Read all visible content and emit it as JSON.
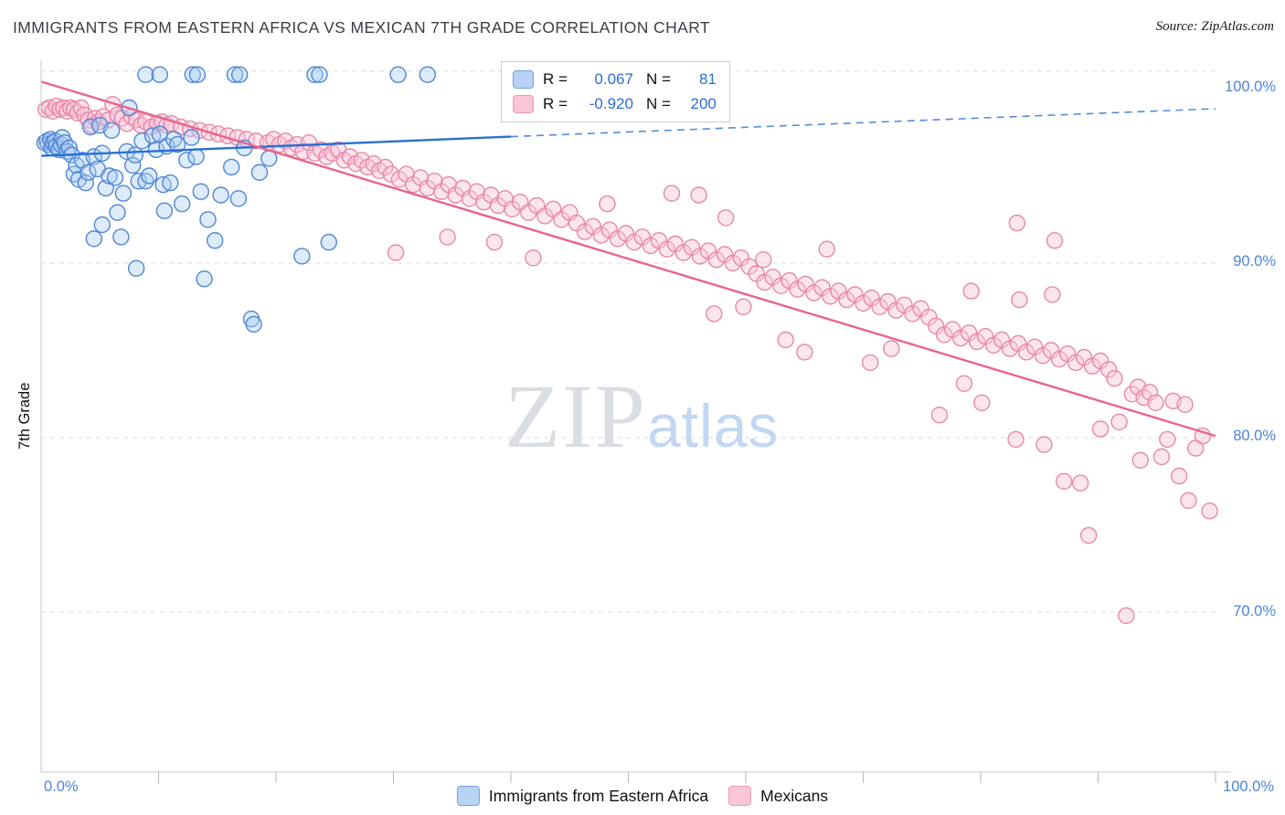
{
  "title": "IMMIGRANTS FROM EASTERN AFRICA VS MEXICAN 7TH GRADE CORRELATION CHART",
  "source": "Source: ZipAtlas.com",
  "watermark": {
    "zip": "ZIP",
    "atlas": "atlas"
  },
  "y_axis": {
    "title": "7th Grade",
    "tick_labels": [
      "100.0%",
      "90.0%",
      "80.0%",
      "70.0%"
    ],
    "tick_values": [
      100,
      90,
      80,
      70
    ]
  },
  "x_axis": {
    "left_label": "0.0%",
    "right_label": "100.0%"
  },
  "legend_box": {
    "rows": [
      {
        "r_label": "R =",
        "r_value": "0.067",
        "n_label": "N =",
        "n_value": "81"
      },
      {
        "r_label": "R =",
        "r_value": "-0.920",
        "n_label": "N =",
        "n_value": "200"
      }
    ]
  },
  "bottom_legend": [
    {
      "label": "Immigrants from Eastern Africa"
    },
    {
      "label": "Mexicans"
    }
  ],
  "colors": {
    "blue_fill": "#aaccf5",
    "blue_stroke": "#4f86d6",
    "blue_trend": "#2a6fd2",
    "pink_fill": "#f9c8d9",
    "pink_stroke": "#e887a8",
    "pink_trend": "#e8648e",
    "grid": "#dcdcdc",
    "axis": "#c8c8c8",
    "tick": "#b5b5b5",
    "axis_label": "#4b86d8"
  },
  "chart_data": {
    "type": "scatter",
    "title": "IMMIGRANTS FROM EASTERN AFRICA VS MEXICAN 7TH GRADE CORRELATION CHART",
    "xlabel": "",
    "ylabel": "7th Grade",
    "xlim": [
      0,
      100
    ],
    "ylim": [
      60.8,
      101.5
    ],
    "grid": true,
    "y_gridlines": [
      101,
      90,
      80,
      70
    ],
    "x_ticks": [
      10,
      20,
      30,
      40,
      50,
      60,
      70,
      80,
      90,
      100
    ],
    "legend_position": "top-center",
    "series": [
      {
        "name": "Immigrants from Eastern Africa",
        "R": 0.067,
        "N": 81,
        "fill": "#aaccf5",
        "fill_opacity": 0.4,
        "stroke": "#4f86d6",
        "trend_color": "#2a6fd2",
        "trend": {
          "solid": [
            [
              0,
              96.15
            ],
            [
              40,
              97.25
            ]
          ],
          "dashed": [
            [
              40,
              97.25
            ],
            [
              100,
              98.85
            ]
          ]
        },
        "points": [
          [
            8.9,
            100.8
          ],
          [
            10.1,
            100.8
          ],
          [
            12.9,
            100.8
          ],
          [
            13.3,
            100.8
          ],
          [
            16.5,
            100.8
          ],
          [
            16.9,
            100.8
          ],
          [
            23.3,
            100.8
          ],
          [
            23.7,
            100.8
          ],
          [
            30.4,
            100.8
          ],
          [
            32.9,
            100.8
          ],
          [
            0.3,
            96.9
          ],
          [
            0.5,
            97.0
          ],
          [
            0.6,
            96.8
          ],
          [
            0.8,
            97.1
          ],
          [
            0.9,
            96.6
          ],
          [
            1.0,
            96.9
          ],
          [
            1.2,
            97.0
          ],
          [
            1.3,
            96.7
          ],
          [
            1.5,
            96.5
          ],
          [
            1.7,
            96.8
          ],
          [
            1.8,
            97.2
          ],
          [
            2.0,
            96.9
          ],
          [
            2.2,
            96.4
          ],
          [
            2.4,
            96.6
          ],
          [
            2.6,
            96.2
          ],
          [
            2.8,
            95.1
          ],
          [
            3.0,
            95.6
          ],
          [
            3.2,
            94.8
          ],
          [
            3.5,
            95.9
          ],
          [
            3.8,
            94.6
          ],
          [
            4.0,
            95.2
          ],
          [
            4.2,
            97.8
          ],
          [
            4.5,
            96.1
          ],
          [
            4.8,
            95.4
          ],
          [
            5.0,
            97.9
          ],
          [
            5.2,
            96.3
          ],
          [
            5.5,
            94.3
          ],
          [
            5.8,
            95.0
          ],
          [
            6.0,
            97.6
          ],
          [
            6.3,
            94.9
          ],
          [
            6.5,
            92.9
          ],
          [
            6.8,
            91.5
          ],
          [
            7.0,
            94.0
          ],
          [
            7.3,
            96.4
          ],
          [
            7.5,
            98.9
          ],
          [
            7.8,
            95.6
          ],
          [
            8.0,
            96.2
          ],
          [
            8.3,
            94.7
          ],
          [
            8.6,
            97.0
          ],
          [
            8.9,
            94.7
          ],
          [
            9.2,
            95.0
          ],
          [
            9.5,
            97.3
          ],
          [
            9.8,
            96.5
          ],
          [
            10.1,
            97.4
          ],
          [
            10.4,
            94.5
          ],
          [
            10.7,
            96.7
          ],
          [
            11.0,
            94.6
          ],
          [
            11.3,
            97.1
          ],
          [
            11.6,
            96.8
          ],
          [
            12.0,
            93.4
          ],
          [
            4.5,
            91.4
          ],
          [
            5.2,
            92.2
          ],
          [
            8.1,
            89.7
          ],
          [
            13.9,
            89.1
          ],
          [
            17.9,
            86.8
          ],
          [
            18.1,
            86.5
          ],
          [
            22.2,
            90.4
          ],
          [
            24.5,
            91.2
          ],
          [
            10.5,
            93.0
          ],
          [
            14.8,
            91.3
          ],
          [
            12.4,
            95.9
          ],
          [
            12.8,
            97.2
          ],
          [
            13.2,
            96.1
          ],
          [
            13.6,
            94.1
          ],
          [
            14.2,
            92.5
          ],
          [
            15.3,
            93.9
          ],
          [
            16.2,
            95.5
          ],
          [
            16.8,
            93.7
          ],
          [
            17.3,
            96.6
          ],
          [
            18.6,
            95.2
          ],
          [
            19.4,
            96.0
          ]
        ]
      },
      {
        "name": "Mexicans",
        "R": -0.92,
        "N": 200,
        "fill": "#f9c8d9",
        "fill_opacity": 0.45,
        "stroke": "#e887a8",
        "trend_color": "#e8648e",
        "trend": {
          "solid": [
            [
              0,
              100.4
            ],
            [
              100,
              80.1
            ]
          ]
        },
        "points": [
          [
            0.4,
            98.8
          ],
          [
            0.7,
            98.9
          ],
          [
            1.0,
            98.7
          ],
          [
            1.3,
            99.0
          ],
          [
            1.6,
            98.8
          ],
          [
            1.9,
            98.9
          ],
          [
            2.2,
            98.7
          ],
          [
            2.5,
            98.9
          ],
          [
            2.8,
            98.8
          ],
          [
            3.1,
            98.6
          ],
          [
            3.4,
            98.9
          ],
          [
            3.7,
            98.5
          ],
          [
            4.0,
            98.2
          ],
          [
            4.3,
            97.9
          ],
          [
            4.6,
            98.3
          ],
          [
            4.9,
            98.1
          ],
          [
            5.3,
            98.4
          ],
          [
            5.7,
            98.2
          ],
          [
            6.1,
            99.1
          ],
          [
            6.5,
            98.5
          ],
          [
            6.9,
            98.3
          ],
          [
            7.3,
            98.0
          ],
          [
            7.7,
            98.4
          ],
          [
            8.1,
            98.2
          ],
          [
            8.5,
            97.9
          ],
          [
            8.9,
            98.1
          ],
          [
            9.4,
            97.8
          ],
          [
            9.9,
            98.0
          ],
          [
            10.3,
            98.1
          ],
          [
            10.7,
            97.9
          ],
          [
            11.1,
            98.0
          ],
          [
            11.9,
            97.8
          ],
          [
            12.7,
            97.7
          ],
          [
            13.5,
            97.6
          ],
          [
            14.3,
            97.5
          ],
          [
            15.1,
            97.4
          ],
          [
            15.9,
            97.3
          ],
          [
            16.7,
            97.2
          ],
          [
            17.5,
            97.1
          ],
          [
            18.3,
            97.0
          ],
          [
            19.3,
            96.9
          ],
          [
            19.8,
            97.1
          ],
          [
            20.3,
            96.8
          ],
          [
            20.8,
            97.0
          ],
          [
            21.3,
            96.6
          ],
          [
            21.8,
            96.8
          ],
          [
            22.3,
            96.4
          ],
          [
            22.8,
            96.9
          ],
          [
            23.3,
            96.3
          ],
          [
            23.8,
            96.5
          ],
          [
            24.3,
            96.1
          ],
          [
            24.8,
            96.3
          ],
          [
            25.3,
            96.5
          ],
          [
            25.8,
            95.9
          ],
          [
            26.3,
            96.1
          ],
          [
            26.8,
            95.7
          ],
          [
            27.3,
            95.9
          ],
          [
            27.8,
            95.5
          ],
          [
            28.3,
            95.7
          ],
          [
            28.8,
            95.3
          ],
          [
            29.3,
            95.5
          ],
          [
            29.8,
            95.1
          ],
          [
            30.2,
            90.6
          ],
          [
            30.5,
            94.8
          ],
          [
            31.1,
            95.1
          ],
          [
            31.7,
            94.5
          ],
          [
            32.3,
            94.9
          ],
          [
            32.9,
            94.3
          ],
          [
            33.5,
            94.7
          ],
          [
            34.1,
            94.1
          ],
          [
            34.6,
            91.5
          ],
          [
            34.7,
            94.5
          ],
          [
            35.3,
            93.9
          ],
          [
            35.9,
            94.3
          ],
          [
            36.5,
            93.7
          ],
          [
            37.1,
            94.1
          ],
          [
            37.7,
            93.5
          ],
          [
            38.3,
            93.9
          ],
          [
            38.6,
            91.2
          ],
          [
            38.9,
            93.3
          ],
          [
            39.5,
            93.7
          ],
          [
            40.1,
            93.1
          ],
          [
            40.8,
            93.5
          ],
          [
            41.5,
            92.9
          ],
          [
            41.9,
            90.3
          ],
          [
            42.2,
            93.3
          ],
          [
            42.9,
            92.7
          ],
          [
            43.6,
            93.1
          ],
          [
            44.3,
            92.5
          ],
          [
            45.0,
            92.9
          ],
          [
            45.6,
            92.3
          ],
          [
            46.3,
            91.8
          ],
          [
            47.0,
            92.1
          ],
          [
            47.7,
            91.6
          ],
          [
            48.2,
            93.4
          ],
          [
            48.4,
            91.9
          ],
          [
            49.1,
            91.4
          ],
          [
            49.8,
            91.7
          ],
          [
            50.5,
            91.2
          ],
          [
            51.2,
            91.5
          ],
          [
            51.9,
            91.0
          ],
          [
            52.6,
            91.3
          ],
          [
            53.3,
            90.8
          ],
          [
            53.7,
            94.0
          ],
          [
            54.0,
            91.1
          ],
          [
            54.7,
            90.6
          ],
          [
            55.4,
            90.9
          ],
          [
            56.0,
            93.9
          ],
          [
            56.1,
            90.4
          ],
          [
            56.8,
            90.7
          ],
          [
            57.3,
            87.1
          ],
          [
            57.5,
            90.2
          ],
          [
            58.2,
            90.5
          ],
          [
            58.3,
            92.6
          ],
          [
            58.9,
            90.0
          ],
          [
            59.6,
            90.3
          ],
          [
            59.8,
            87.5
          ],
          [
            60.3,
            89.8
          ],
          [
            60.9,
            89.4
          ],
          [
            61.5,
            90.2
          ],
          [
            61.6,
            88.9
          ],
          [
            62.3,
            89.2
          ],
          [
            63.0,
            88.7
          ],
          [
            63.4,
            85.6
          ],
          [
            63.7,
            89.0
          ],
          [
            64.4,
            88.5
          ],
          [
            65.0,
            84.9
          ],
          [
            65.1,
            88.8
          ],
          [
            65.8,
            88.3
          ],
          [
            66.5,
            88.6
          ],
          [
            66.9,
            90.8
          ],
          [
            67.2,
            88.1
          ],
          [
            67.9,
            88.4
          ],
          [
            68.6,
            87.9
          ],
          [
            69.3,
            88.2
          ],
          [
            70.0,
            87.7
          ],
          [
            70.6,
            84.3
          ],
          [
            70.7,
            88.0
          ],
          [
            71.4,
            87.5
          ],
          [
            72.1,
            87.8
          ],
          [
            72.4,
            85.1
          ],
          [
            72.8,
            87.3
          ],
          [
            73.5,
            87.6
          ],
          [
            74.2,
            87.1
          ],
          [
            74.9,
            87.4
          ],
          [
            75.6,
            86.9
          ],
          [
            76.2,
            86.4
          ],
          [
            76.5,
            81.3
          ],
          [
            76.9,
            85.9
          ],
          [
            77.6,
            86.2
          ],
          [
            78.3,
            85.7
          ],
          [
            78.6,
            83.1
          ],
          [
            79.0,
            86.0
          ],
          [
            79.2,
            88.4
          ],
          [
            79.7,
            85.5
          ],
          [
            80.1,
            82.0
          ],
          [
            80.4,
            85.8
          ],
          [
            81.1,
            85.3
          ],
          [
            81.8,
            85.6
          ],
          [
            82.5,
            85.1
          ],
          [
            83.0,
            79.9
          ],
          [
            83.1,
            92.3
          ],
          [
            83.2,
            85.4
          ],
          [
            83.3,
            87.9
          ],
          [
            83.9,
            84.9
          ],
          [
            84.6,
            85.2
          ],
          [
            85.3,
            84.7
          ],
          [
            85.4,
            79.6
          ],
          [
            86.0,
            85.0
          ],
          [
            86.1,
            88.2
          ],
          [
            86.3,
            91.3
          ],
          [
            86.7,
            84.5
          ],
          [
            87.1,
            77.5
          ],
          [
            87.4,
            84.8
          ],
          [
            88.1,
            84.3
          ],
          [
            88.5,
            77.4
          ],
          [
            88.8,
            84.6
          ],
          [
            89.2,
            74.4
          ],
          [
            89.5,
            84.1
          ],
          [
            90.2,
            84.4
          ],
          [
            90.2,
            80.5
          ],
          [
            90.9,
            83.9
          ],
          [
            91.4,
            83.4
          ],
          [
            91.8,
            80.9
          ],
          [
            92.4,
            69.8
          ],
          [
            92.9,
            82.5
          ],
          [
            93.4,
            82.9
          ],
          [
            93.6,
            78.7
          ],
          [
            93.9,
            82.3
          ],
          [
            94.4,
            82.6
          ],
          [
            94.9,
            82.0
          ],
          [
            95.4,
            78.9
          ],
          [
            95.9,
            79.9
          ],
          [
            96.4,
            82.1
          ],
          [
            96.9,
            77.8
          ],
          [
            97.4,
            81.9
          ],
          [
            97.7,
            76.4
          ],
          [
            98.3,
            79.4
          ],
          [
            98.9,
            80.1
          ],
          [
            99.5,
            75.8
          ]
        ]
      }
    ]
  }
}
